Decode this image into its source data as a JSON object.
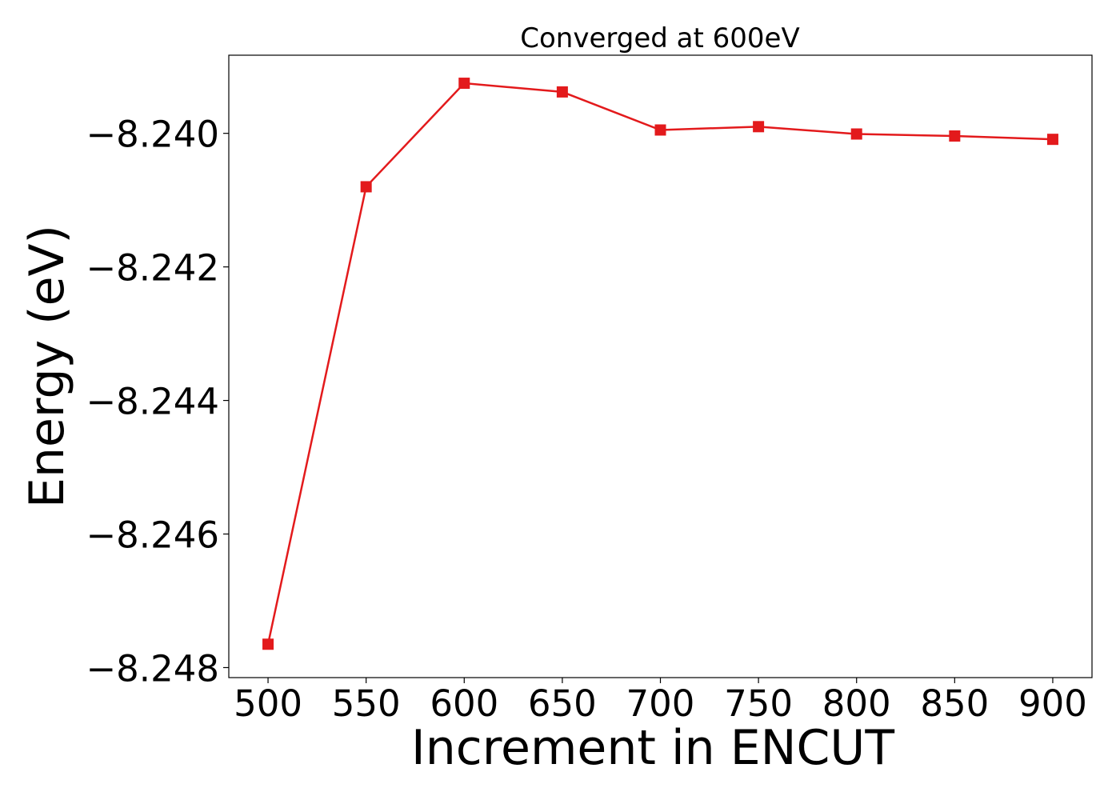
{
  "chart_data": {
    "type": "line",
    "title": "Converged at 600eV",
    "xlabel": "Increment in ENCUT",
    "ylabel": "Energy (eV)",
    "x": [
      500,
      550,
      600,
      650,
      700,
      750,
      800,
      850,
      900
    ],
    "series": [
      {
        "values": [
          -8.24765,
          -8.2408,
          -8.23925,
          -8.23938,
          -8.23995,
          -8.2399,
          -8.24001,
          -8.24004,
          -8.24009
        ],
        "color": "#e31a1c",
        "marker": "square"
      }
    ],
    "xticks": [
      500,
      550,
      600,
      650,
      700,
      750,
      800,
      850,
      900
    ],
    "xtick_labels": [
      "500",
      "550",
      "600",
      "650",
      "700",
      "750",
      "800",
      "850",
      "900"
    ],
    "yticks": [
      -8.24,
      -8.242,
      -8.244,
      -8.246,
      -8.248
    ],
    "ytick_labels": [
      "−8.240",
      "−8.242",
      "−8.244",
      "−8.246",
      "−8.248"
    ],
    "xlim": [
      480,
      920
    ],
    "ylim": [
      -8.24815,
      -8.23883
    ],
    "grid": false,
    "legend": "none"
  }
}
